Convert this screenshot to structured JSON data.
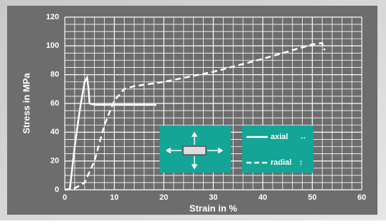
{
  "chart_data": {
    "type": "line",
    "x_label": "Strain in %",
    "y_label": "Stress in MPa",
    "xlim": [
      0,
      60
    ],
    "xticks": [
      0,
      10,
      20,
      30,
      40,
      50,
      60
    ],
    "ylim": [
      0,
      120
    ],
    "yticks": [
      0,
      20,
      40,
      60,
      80,
      100,
      120
    ],
    "grid": true,
    "minor_grid": {
      "x_step": 2,
      "y_step": 5
    },
    "series": [
      {
        "name": "axial",
        "symbol": "↔",
        "color": "#ffffff",
        "dash": false,
        "x": [
          1,
          2,
          3,
          4,
          4.5,
          4.8,
          5,
          6,
          10,
          18.5
        ],
        "values": [
          0,
          30,
          55,
          75,
          78,
          70,
          60,
          59,
          59,
          59
        ]
      },
      {
        "name": "radial",
        "symbol": "↕",
        "color": "#ffffff",
        "dash": true,
        "x": [
          0,
          2,
          4,
          6,
          8,
          10,
          12,
          14,
          20,
          30,
          40,
          50,
          52,
          52.5
        ],
        "values": [
          0,
          1,
          5,
          20,
          45,
          62,
          70,
          72,
          75,
          82,
          91,
          101,
          102,
          97
        ]
      }
    ]
  }
}
